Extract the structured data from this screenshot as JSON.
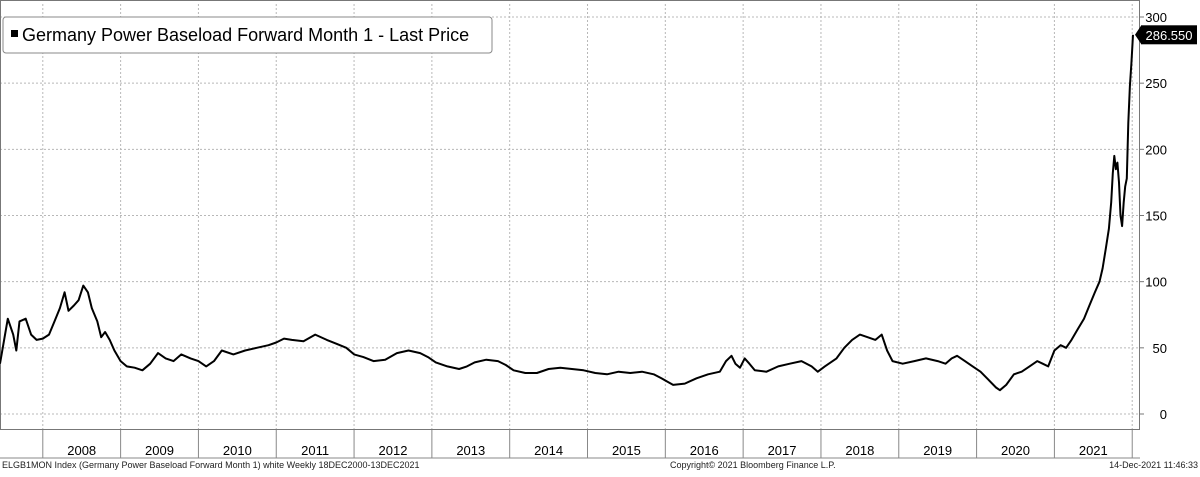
{
  "chart_data": {
    "type": "line",
    "title": "Germany Power Baseload Forward Month 1 - Last Price",
    "last_value_label": "286.550",
    "y_ticks": [
      "300",
      "250",
      "200",
      "150",
      "100",
      "50",
      "0"
    ],
    "y_tick_values": [
      300,
      250,
      200,
      150,
      100,
      50,
      0
    ],
    "ylim": [
      -8,
      303
    ],
    "xlim": [
      2007.45,
      2022.1
    ],
    "x_labels": [
      "2008",
      "2009",
      "2010",
      "2011",
      "2012",
      "2013",
      "2014",
      "2015",
      "2016",
      "2017",
      "2018",
      "2019",
      "2020",
      "2021"
    ],
    "grid": true,
    "legend": "top-left",
    "color": "#000000",
    "series": [
      {
        "points": [
          [
            2007.45,
            38
          ],
          [
            2007.5,
            55
          ],
          [
            2007.55,
            72
          ],
          [
            2007.62,
            60
          ],
          [
            2007.66,
            48
          ],
          [
            2007.7,
            70
          ],
          [
            2007.78,
            72
          ],
          [
            2007.85,
            60
          ],
          [
            2007.92,
            56
          ],
          [
            2008.0,
            57
          ],
          [
            2008.08,
            60
          ],
          [
            2008.15,
            70
          ],
          [
            2008.22,
            80
          ],
          [
            2008.28,
            92
          ],
          [
            2008.33,
            78
          ],
          [
            2008.4,
            82
          ],
          [
            2008.46,
            86
          ],
          [
            2008.52,
            97
          ],
          [
            2008.58,
            92
          ],
          [
            2008.63,
            80
          ],
          [
            2008.7,
            70
          ],
          [
            2008.75,
            58
          ],
          [
            2008.8,
            62
          ],
          [
            2008.86,
            56
          ],
          [
            2008.92,
            48
          ],
          [
            2009.0,
            40
          ],
          [
            2009.08,
            36
          ],
          [
            2009.18,
            35
          ],
          [
            2009.28,
            33
          ],
          [
            2009.38,
            38
          ],
          [
            2009.48,
            46
          ],
          [
            2009.58,
            42
          ],
          [
            2009.68,
            40
          ],
          [
            2009.78,
            45
          ],
          [
            2009.9,
            42
          ],
          [
            2010.0,
            40
          ],
          [
            2010.1,
            36
          ],
          [
            2010.2,
            40
          ],
          [
            2010.3,
            48
          ],
          [
            2010.45,
            45
          ],
          [
            2010.6,
            48
          ],
          [
            2010.75,
            50
          ],
          [
            2010.9,
            52
          ],
          [
            2011.0,
            54
          ],
          [
            2011.1,
            57
          ],
          [
            2011.2,
            56
          ],
          [
            2011.35,
            55
          ],
          [
            2011.5,
            60
          ],
          [
            2011.65,
            56
          ],
          [
            2011.78,
            53
          ],
          [
            2011.9,
            50
          ],
          [
            2012.0,
            45
          ],
          [
            2012.12,
            43
          ],
          [
            2012.25,
            40
          ],
          [
            2012.4,
            41
          ],
          [
            2012.55,
            46
          ],
          [
            2012.7,
            48
          ],
          [
            2012.85,
            46
          ],
          [
            2012.95,
            43
          ],
          [
            2013.05,
            39
          ],
          [
            2013.2,
            36
          ],
          [
            2013.35,
            34
          ],
          [
            2013.45,
            36
          ],
          [
            2013.55,
            39
          ],
          [
            2013.7,
            41
          ],
          [
            2013.85,
            40
          ],
          [
            2013.95,
            37
          ],
          [
            2014.05,
            33
          ],
          [
            2014.2,
            31
          ],
          [
            2014.35,
            31
          ],
          [
            2014.5,
            34
          ],
          [
            2014.65,
            35
          ],
          [
            2014.8,
            34
          ],
          [
            2014.95,
            33
          ],
          [
            2015.1,
            31
          ],
          [
            2015.25,
            30
          ],
          [
            2015.4,
            32
          ],
          [
            2015.55,
            31
          ],
          [
            2015.7,
            32
          ],
          [
            2015.85,
            30
          ],
          [
            2015.95,
            27
          ],
          [
            2016.1,
            22
          ],
          [
            2016.25,
            23
          ],
          [
            2016.4,
            27
          ],
          [
            2016.55,
            30
          ],
          [
            2016.7,
            32
          ],
          [
            2016.78,
            40
          ],
          [
            2016.85,
            44
          ],
          [
            2016.9,
            38
          ],
          [
            2016.96,
            35
          ],
          [
            2017.02,
            42
          ],
          [
            2017.08,
            38
          ],
          [
            2017.15,
            33
          ],
          [
            2017.3,
            32
          ],
          [
            2017.45,
            36
          ],
          [
            2017.6,
            38
          ],
          [
            2017.75,
            40
          ],
          [
            2017.88,
            36
          ],
          [
            2017.96,
            32
          ],
          [
            2018.05,
            36
          ],
          [
            2018.2,
            42
          ],
          [
            2018.3,
            50
          ],
          [
            2018.4,
            56
          ],
          [
            2018.5,
            60
          ],
          [
            2018.6,
            58
          ],
          [
            2018.7,
            56
          ],
          [
            2018.78,
            60
          ],
          [
            2018.85,
            48
          ],
          [
            2018.92,
            40
          ],
          [
            2019.05,
            38
          ],
          [
            2019.2,
            40
          ],
          [
            2019.35,
            42
          ],
          [
            2019.5,
            40
          ],
          [
            2019.6,
            38
          ],
          [
            2019.68,
            42
          ],
          [
            2019.75,
            44
          ],
          [
            2019.85,
            40
          ],
          [
            2019.95,
            36
          ],
          [
            2020.05,
            32
          ],
          [
            2020.15,
            26
          ],
          [
            2020.25,
            20
          ],
          [
            2020.3,
            18
          ],
          [
            2020.38,
            22
          ],
          [
            2020.48,
            30
          ],
          [
            2020.58,
            32
          ],
          [
            2020.68,
            36
          ],
          [
            2020.78,
            40
          ],
          [
            2020.85,
            38
          ],
          [
            2020.92,
            36
          ],
          [
            2021.0,
            48
          ],
          [
            2021.08,
            52
          ],
          [
            2021.15,
            50
          ],
          [
            2021.22,
            56
          ],
          [
            2021.3,
            64
          ],
          [
            2021.38,
            72
          ],
          [
            2021.45,
            82
          ],
          [
            2021.52,
            92
          ],
          [
            2021.58,
            100
          ],
          [
            2021.62,
            110
          ],
          [
            2021.66,
            125
          ],
          [
            2021.7,
            140
          ],
          [
            2021.73,
            160
          ],
          [
            2021.75,
            182
          ],
          [
            2021.77,
            195
          ],
          [
            2021.79,
            185
          ],
          [
            2021.81,
            190
          ],
          [
            2021.83,
            175
          ],
          [
            2021.85,
            150
          ],
          [
            2021.87,
            142
          ],
          [
            2021.89,
            160
          ],
          [
            2021.91,
            172
          ],
          [
            2021.93,
            178
          ],
          [
            2021.95,
            220
          ],
          [
            2021.97,
            248
          ],
          [
            2021.99,
            265
          ],
          [
            2022.01,
            286.55
          ]
        ]
      }
    ]
  },
  "footer": {
    "left": "ELGB1MON Index (Germany Power Baseload Forward Month 1) white  Weekly 18DEC2000-13DEC2021",
    "center": "Copyright© 2021 Bloomberg Finance L.P.",
    "right": "14-Dec-2021 11:46:33"
  }
}
